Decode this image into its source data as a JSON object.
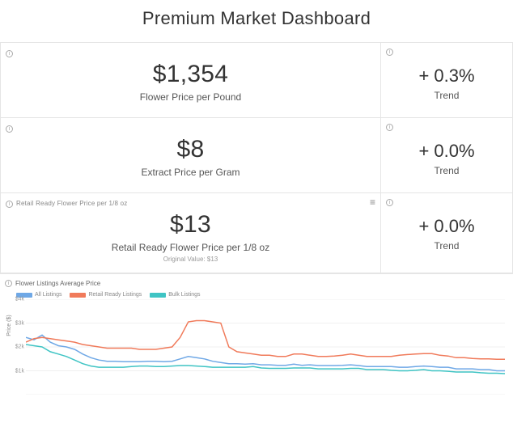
{
  "title": "Premium Market Dashboard",
  "rows": [
    {
      "main": {
        "value": "$1,354",
        "label": "Flower Price per Pound",
        "header_label": "",
        "original": ""
      },
      "side": {
        "value": "+ 0.3%",
        "label": "Trend"
      }
    },
    {
      "main": {
        "value": "$8",
        "label": "Extract Price per Gram",
        "header_label": "",
        "original": ""
      },
      "side": {
        "value": "+ 0.0%",
        "label": "Trend"
      }
    },
    {
      "main": {
        "value": "$13",
        "label": "Retail Ready Flower Price per 1/8 oz",
        "header_label": "Retail Ready Flower Price per 1/8 oz",
        "original": "Original Value: $13",
        "show_menu": true
      },
      "side": {
        "value": "+ 0.0%",
        "label": "Trend"
      }
    }
  ],
  "chart": {
    "title": "Flower Listings Average Price",
    "y_label": "Price ($)",
    "type": "line",
    "ylim": [
      0,
      4000
    ],
    "yticks": [
      0,
      1000,
      2000,
      3000,
      4000
    ],
    "ytick_labels": [
      "",
      "$1k",
      "$2k",
      "$3k",
      "$4k"
    ],
    "grid_color": "#f0f0f0",
    "background": "#ffffff",
    "x_count": 60,
    "legend": [
      {
        "name": "All Listings",
        "color": "#6fa8e6"
      },
      {
        "name": "Retail Ready Listings",
        "color": "#f07a5a"
      },
      {
        "name": "Bulk Listings",
        "color": "#3fc4c4"
      }
    ],
    "series": [
      {
        "name": "All Listings",
        "color": "#6fa8e6",
        "width": 1.5,
        "values": [
          2400,
          2300,
          2500,
          2200,
          2050,
          2000,
          1900,
          1700,
          1550,
          1450,
          1400,
          1400,
          1380,
          1380,
          1380,
          1400,
          1400,
          1380,
          1400,
          1500,
          1600,
          1550,
          1500,
          1400,
          1350,
          1300,
          1300,
          1280,
          1300,
          1250,
          1250,
          1230,
          1230,
          1280,
          1230,
          1250,
          1220,
          1220,
          1220,
          1230,
          1250,
          1220,
          1180,
          1180,
          1180,
          1180,
          1150,
          1150,
          1180,
          1200,
          1180,
          1150,
          1150,
          1080,
          1080,
          1080,
          1050,
          1050,
          1000,
          1000
        ]
      },
      {
        "name": "Retail Ready Listings",
        "color": "#f07a5a",
        "width": 1.5,
        "values": [
          2200,
          2350,
          2400,
          2350,
          2300,
          2250,
          2200,
          2100,
          2050,
          2000,
          1950,
          1950,
          1950,
          1950,
          1900,
          1900,
          1900,
          1950,
          2000,
          2400,
          3050,
          3100,
          3100,
          3050,
          3000,
          2000,
          1800,
          1750,
          1700,
          1650,
          1650,
          1600,
          1600,
          1700,
          1700,
          1650,
          1600,
          1600,
          1620,
          1650,
          1700,
          1650,
          1600,
          1600,
          1600,
          1600,
          1650,
          1680,
          1700,
          1720,
          1720,
          1650,
          1620,
          1550,
          1550,
          1520,
          1500,
          1500,
          1480,
          1480
        ]
      },
      {
        "name": "Bulk Listings",
        "color": "#3fc4c4",
        "width": 1.5,
        "values": [
          2100,
          2050,
          2000,
          1800,
          1700,
          1600,
          1450,
          1300,
          1200,
          1150,
          1150,
          1150,
          1150,
          1180,
          1200,
          1200,
          1180,
          1180,
          1200,
          1220,
          1220,
          1200,
          1180,
          1150,
          1150,
          1150,
          1150,
          1150,
          1180,
          1120,
          1100,
          1100,
          1100,
          1120,
          1120,
          1120,
          1080,
          1080,
          1080,
          1080,
          1100,
          1100,
          1050,
          1050,
          1050,
          1020,
          1000,
          1000,
          1020,
          1050,
          1000,
          1000,
          980,
          950,
          950,
          950,
          920,
          900,
          900,
          880
        ]
      }
    ]
  }
}
